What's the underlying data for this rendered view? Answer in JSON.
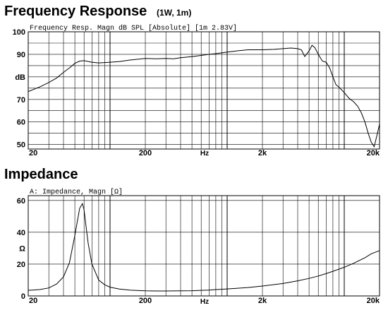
{
  "chart_data": [
    {
      "type": "line",
      "title": "Frequency Response",
      "title_note": "(1W, 1m)",
      "subtitle": "Frequency Resp. Magn dB SPL  [Absolute] [1m 2.83V]",
      "xlabel": "Hz",
      "ylabel": "dB",
      "xscale": "log",
      "xlim": [
        20,
        20000
      ],
      "ylim": [
        48,
        100
      ],
      "x_ticks": [
        {
          "v": 20,
          "label": "20"
        },
        {
          "v": 200,
          "label": "200"
        },
        {
          "v": 2000,
          "label": "2k"
        },
        {
          "v": 20000,
          "label": "20k"
        }
      ],
      "y_ticks": [
        {
          "v": 100,
          "label": "100"
        },
        {
          "v": 90,
          "label": "90"
        },
        {
          "v": 80,
          "label": "dB"
        },
        {
          "v": 70,
          "label": "70"
        },
        {
          "v": 60,
          "label": "60"
        },
        {
          "v": 50,
          "label": "50"
        }
      ],
      "y_grid": [
        100,
        95,
        90,
        85,
        80,
        75,
        70,
        65,
        60,
        55,
        50
      ],
      "grid": true,
      "line_color": "#000000",
      "series": [
        {
          "x": [
            20,
            25,
            30,
            35,
            40,
            45,
            50,
            55,
            60,
            70,
            80,
            100,
            120,
            150,
            200,
            250,
            300,
            350,
            400,
            500,
            600,
            700,
            800,
            1000,
            1200,
            1500,
            1800,
            2000,
            2500,
            3000,
            3500,
            4000,
            4300,
            4600,
            5000,
            5300,
            5600,
            6000,
            6500,
            7000,
            7500,
            8000,
            8500,
            9000,
            10000,
            11000,
            12000,
            13000,
            14000,
            15000,
            16000,
            17000,
            18000,
            19000,
            20000
          ],
          "y": [
            73.5,
            75.5,
            77.5,
            79.5,
            82,
            84,
            86,
            87,
            87.2,
            86.5,
            86.2,
            86.5,
            86.8,
            87.5,
            88.2,
            88,
            88.2,
            88,
            88.5,
            89,
            89.5,
            90,
            90.3,
            91,
            91.5,
            92,
            92,
            92,
            92.2,
            92.5,
            92.8,
            92.5,
            92,
            89,
            91.5,
            94,
            93,
            90,
            87,
            86.5,
            84,
            80,
            76.5,
            75.5,
            73,
            70.5,
            69,
            67,
            64,
            60,
            55,
            51,
            49,
            54,
            59
          ]
        }
      ]
    },
    {
      "type": "line",
      "title": "Impedance",
      "subtitle": "A: Impedance, Magn [Ω]",
      "xlabel": "Hz",
      "ylabel": "Ω",
      "xscale": "log",
      "xlim": [
        20,
        20000
      ],
      "ylim": [
        0,
        63
      ],
      "x_ticks": [
        {
          "v": 20,
          "label": "20"
        },
        {
          "v": 200,
          "label": "200"
        },
        {
          "v": 2000,
          "label": "2k"
        },
        {
          "v": 20000,
          "label": "20k"
        }
      ],
      "y_ticks": [
        {
          "v": 60,
          "label": "60"
        },
        {
          "v": 40,
          "label": "40"
        },
        {
          "v": 30,
          "label": "Ω"
        },
        {
          "v": 20,
          "label": "20"
        },
        {
          "v": 0,
          "label": "0"
        }
      ],
      "y_grid": [
        60,
        40,
        20
      ],
      "grid": true,
      "line_color": "#000000",
      "series": [
        {
          "x": [
            20,
            25,
            30,
            35,
            40,
            45,
            50,
            55,
            58,
            60,
            62,
            65,
            70,
            80,
            90,
            100,
            120,
            150,
            200,
            250,
            300,
            400,
            500,
            600,
            700,
            800,
            1000,
            1500,
            2000,
            3000,
            4000,
            5000,
            6000,
            7000,
            8000,
            10000,
            12000,
            15000,
            17000,
            20000
          ],
          "y": [
            3.5,
            4,
            5,
            7.5,
            12,
            21,
            38,
            55,
            58,
            54,
            45,
            33,
            20,
            10,
            7,
            5.5,
            4.3,
            3.6,
            3.2,
            3.1,
            3.1,
            3.2,
            3.3,
            3.5,
            3.7,
            4,
            4.4,
            5.3,
            6.2,
            7.8,
            9.5,
            11,
            12.5,
            14,
            15.5,
            18,
            20.5,
            24,
            26.5,
            28.5
          ]
        }
      ]
    }
  ]
}
